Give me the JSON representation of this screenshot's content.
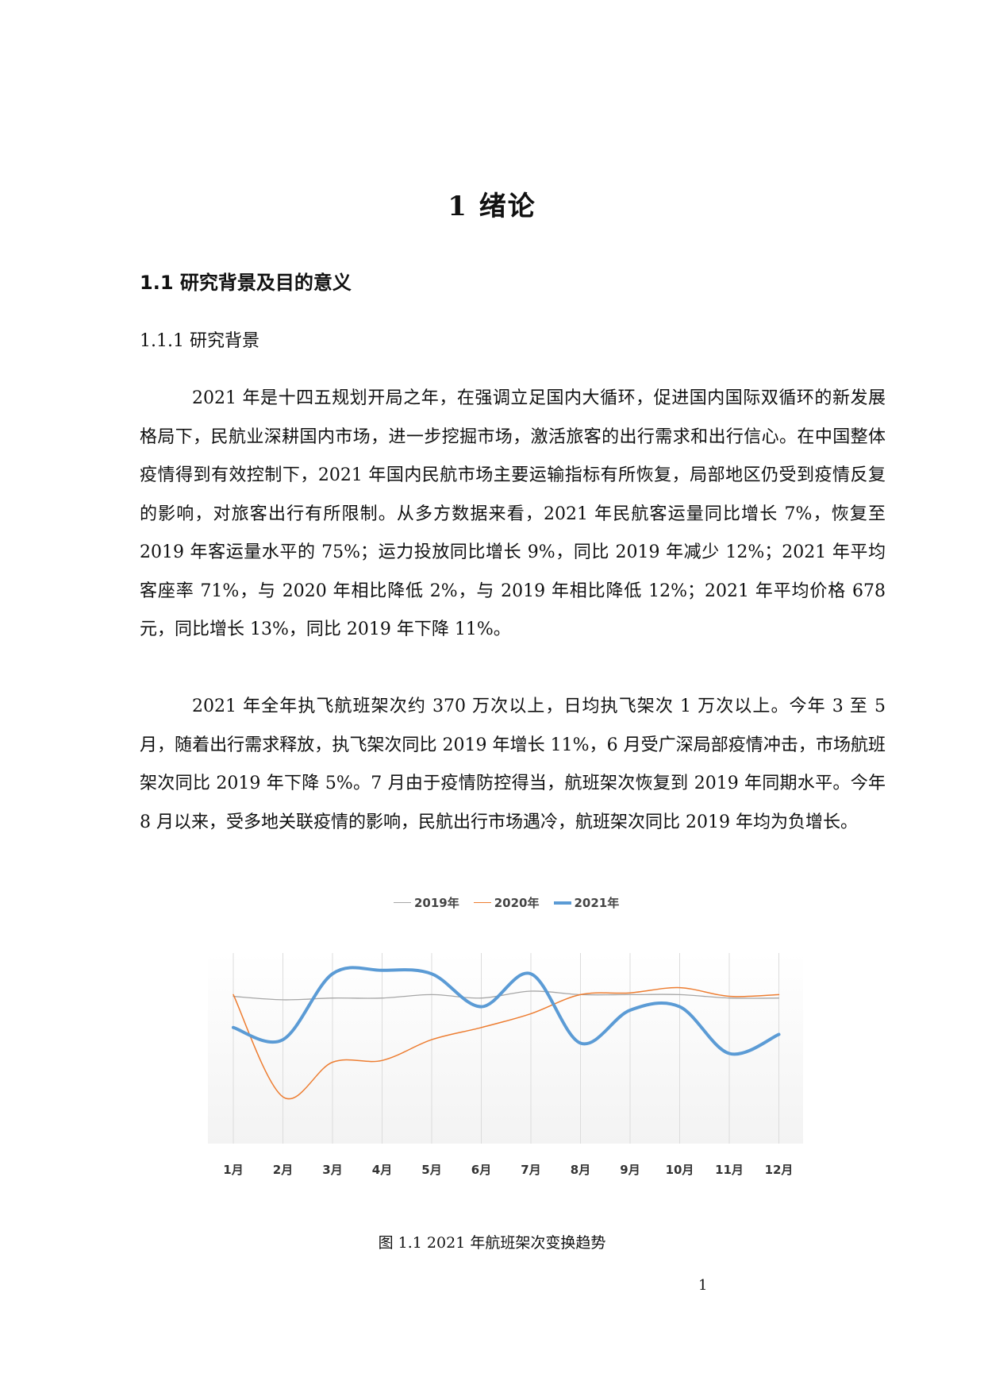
{
  "chapter": {
    "title": "1 绪论"
  },
  "section": {
    "heading": "1.1 研究背景及目的意义"
  },
  "subsection": {
    "heading": "1.1.1 研究背景"
  },
  "paragraphs": [
    "2021 年是十四五规划开局之年，在强调立足国内大循环，促进国内国际双循环的新发展格局下，民航业深耕国内市场，进一步挖掘市场，激活旅客的出行需求和出行信心。在中国整体疫情得到有效控制下，2021 年国内民航市场主要运输指标有所恢复，局部地区仍受到疫情反复的影响，对旅客出行有所限制。从多方数据来看，2021 年民航客运量同比增长 7%，恢复至 2019 年客运量水平的 75%；运力投放同比增长 9%，同比 2019 年减少 12%；2021 年平均客座率 71%，与 2020 年相比降低 2%，与 2019 年相比降低 12%；2021 年平均价格 678 元，同比增长 13%，同比 2019 年下降 11%。",
    "2021 年全年执飞航班架次约 370 万次以上，日均执飞架次 1 万次以上。今年 3 至 5 月，随着出行需求释放，执飞架次同比 2019 年增长 11%，6 月受广深局部疫情冲击，市场航班架次同比 2019 年下降 5%。7 月由于疫情防控得当，航班架次恢复到 2019 年同期水平。今年 8 月以来，受多地关联疫情的影响，民航出行市场遇冷，航班架次同比 2019 年均为负增长。"
  ],
  "chart_data": {
    "type": "line",
    "categories": [
      "1月",
      "2月",
      "3月",
      "4月",
      "5月",
      "6月",
      "7月",
      "8月",
      "9月",
      "10月",
      "11月",
      "12月"
    ],
    "series": [
      {
        "name": "2019年",
        "color": "#a6a6a6",
        "values": [
          85,
          83,
          84,
          84,
          86,
          84,
          88,
          86,
          86,
          86,
          84,
          84
        ]
      },
      {
        "name": "2020年",
        "color": "#ed7d31",
        "values": [
          86,
          27,
          47,
          48,
          60,
          67,
          75,
          86,
          87,
          90,
          85,
          86
        ]
      },
      {
        "name": "2021年",
        "color": "#5b9bd5",
        "values": [
          67,
          60,
          98,
          100,
          98,
          79,
          98,
          58,
          77,
          79,
          52,
          63
        ]
      }
    ],
    "ylim": [
      0,
      110
    ],
    "grid": "vertical",
    "legend": "top-center"
  },
  "caption": "图 1.1 2021 年航班架次变换趋势",
  "page_number": "1"
}
